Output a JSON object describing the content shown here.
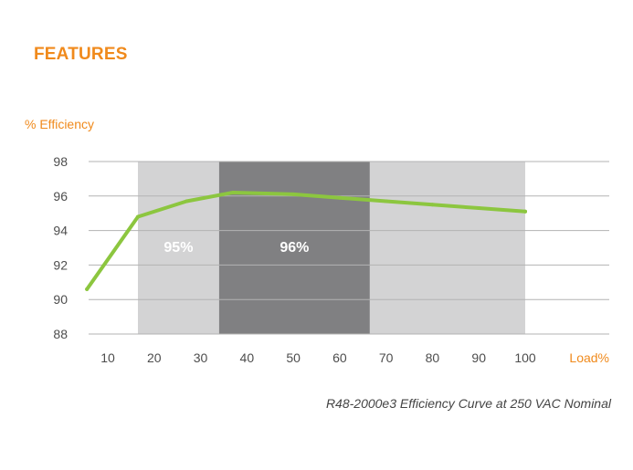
{
  "section_title": "FEATURES",
  "colors": {
    "accent": "#f08a1c",
    "line": "#8cc63f",
    "band_light": "#d3d3d4",
    "band_dark": "#808082",
    "grid": "#b3b3b3",
    "tick_text": "#4d4d4d"
  },
  "chart_data": {
    "type": "line",
    "ylabel": "% Efficiency",
    "xlabel": "Load%",
    "ylim": [
      88,
      98
    ],
    "y_ticks": [
      88,
      90,
      92,
      94,
      96,
      98
    ],
    "x_ticks": [
      10,
      20,
      30,
      40,
      50,
      60,
      70,
      80,
      90,
      100
    ],
    "grid": "horizontal",
    "series": [
      {
        "x": [
          5.5,
          16.5,
          27,
          37,
          50,
          60,
          70,
          80,
          90,
          100
        ],
        "values": [
          90.6,
          94.8,
          95.7,
          96.2,
          96.1,
          95.9,
          95.7,
          95.5,
          95.3,
          95.1
        ]
      }
    ],
    "bands": [
      {
        "x_from": 16.5,
        "x_to": 34,
        "label": "95%",
        "shade": "light"
      },
      {
        "x_from": 34,
        "x_to": 66.5,
        "label": "96%",
        "shade": "dark"
      },
      {
        "x_from": 66.5,
        "x_to": 100,
        "label": "",
        "shade": "light"
      }
    ]
  },
  "caption": "R48-2000e3 Efficiency Curve at 250 VAC Nominal"
}
